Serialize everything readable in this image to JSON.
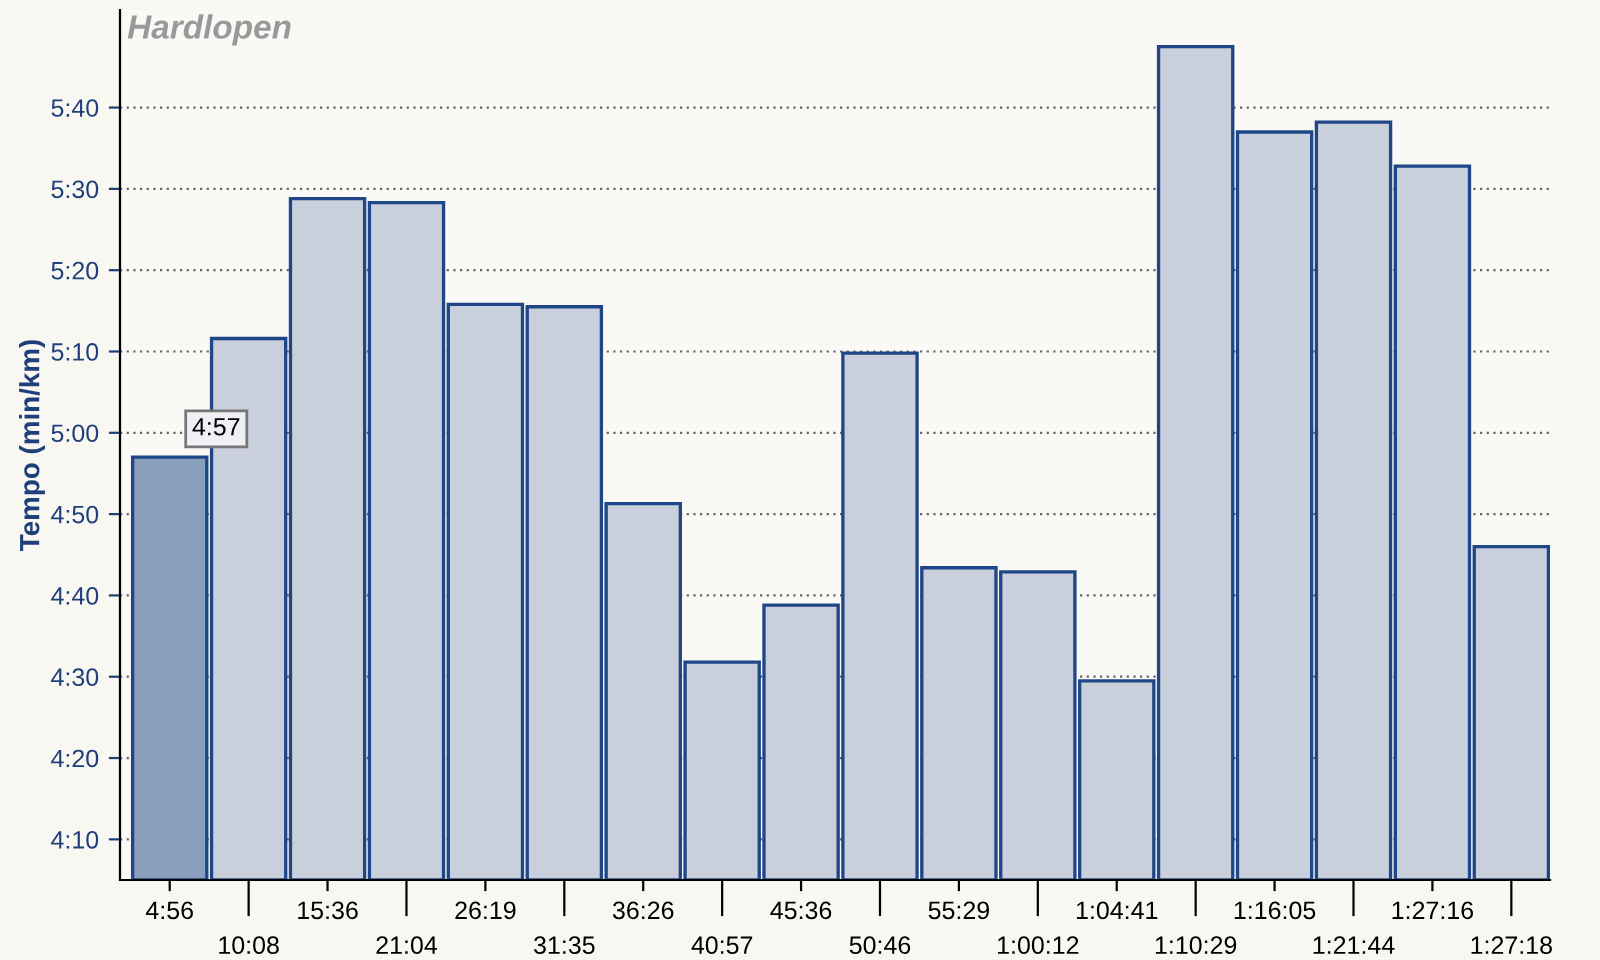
{
  "chart_data": {
    "type": "bar",
    "title": "Hardlopen",
    "ylabel": "Tempo (min/km)",
    "categories": [
      "4:56",
      "10:08",
      "15:36",
      "21:04",
      "26:19",
      "31:35",
      "36:26",
      "40:57",
      "45:36",
      "50:46",
      "55:29",
      "1:00:12",
      "1:04:41",
      "1:10:29",
      "1:16:05",
      "1:21:44",
      "1:27:16",
      "1:27:18"
    ],
    "values": [
      297,
      311.6,
      328.8,
      328.3,
      315.8,
      315.5,
      291.3,
      271.8,
      278.8,
      309.8,
      283.4,
      282.9,
      269.5,
      347.5,
      337,
      338.2,
      332.8,
      286
    ],
    "colors": [
      "#8a9fbb",
      "#c9cfdb",
      "#c9cfdb",
      "#c9cfdb",
      "#c9cfdb",
      "#c9cfdb",
      "#c9cfdb",
      "#c9cfdb",
      "#c9cfdb",
      "#c9cfdb",
      "#c9cfdb",
      "#c9cfdb",
      "#c9cfdb",
      "#c9cfdb",
      "#c9cfdb",
      "#c9cfdb",
      "#c9cfdb",
      "#c9cfdb"
    ],
    "ylim": [
      245,
      352
    ],
    "yticks": [
      {
        "value": 250,
        "label": "4:10"
      },
      {
        "value": 260,
        "label": "4:20"
      },
      {
        "value": 270,
        "label": "4:30"
      },
      {
        "value": 280,
        "label": "4:40"
      },
      {
        "value": 290,
        "label": "4:50"
      },
      {
        "value": 300,
        "label": "5:00"
      },
      {
        "value": 310,
        "label": "5:10"
      },
      {
        "value": 320,
        "label": "5:20"
      },
      {
        "value": 330,
        "label": "5:30"
      },
      {
        "value": 340,
        "label": "5:40"
      }
    ],
    "grid": "y",
    "annotations": [
      {
        "text": "4:57",
        "x": "4:56",
        "y": 297
      }
    ]
  }
}
